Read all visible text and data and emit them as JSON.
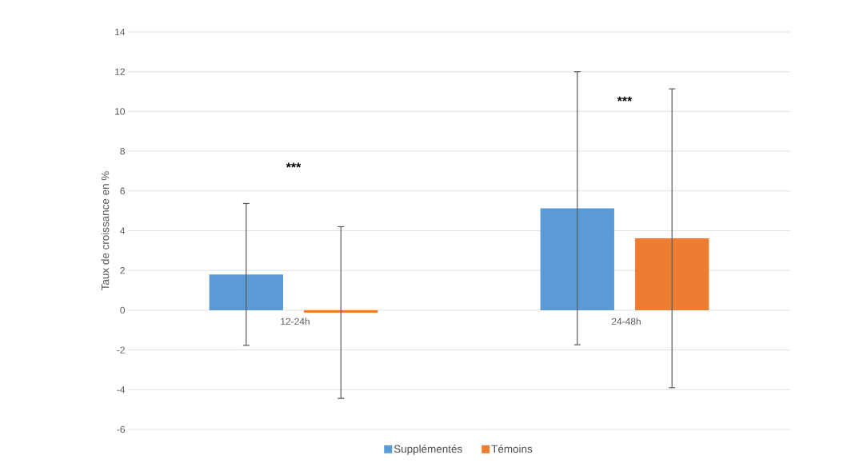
{
  "chart_data": {
    "type": "bar",
    "ylabel": "Taux de croissance en %",
    "categories": [
      "12-24h",
      "24-48h"
    ],
    "series": [
      {
        "name": "Supplémentés",
        "color": "#5b9bd5",
        "values": [
          1.8,
          5.13
        ],
        "errors": [
          3.57,
          6.87
        ]
      },
      {
        "name": "Témoins",
        "color": "#ed7d31",
        "values": [
          -0.12,
          3.62
        ],
        "errors": [
          4.32,
          7.52
        ]
      }
    ],
    "ylim": [
      -6,
      14
    ],
    "yticks": [
      -6,
      -4,
      -2,
      0,
      2,
      4,
      6,
      8,
      10,
      12,
      14
    ],
    "grid": "y",
    "legend": "bottom",
    "annotations": [
      "***",
      "***"
    ]
  }
}
